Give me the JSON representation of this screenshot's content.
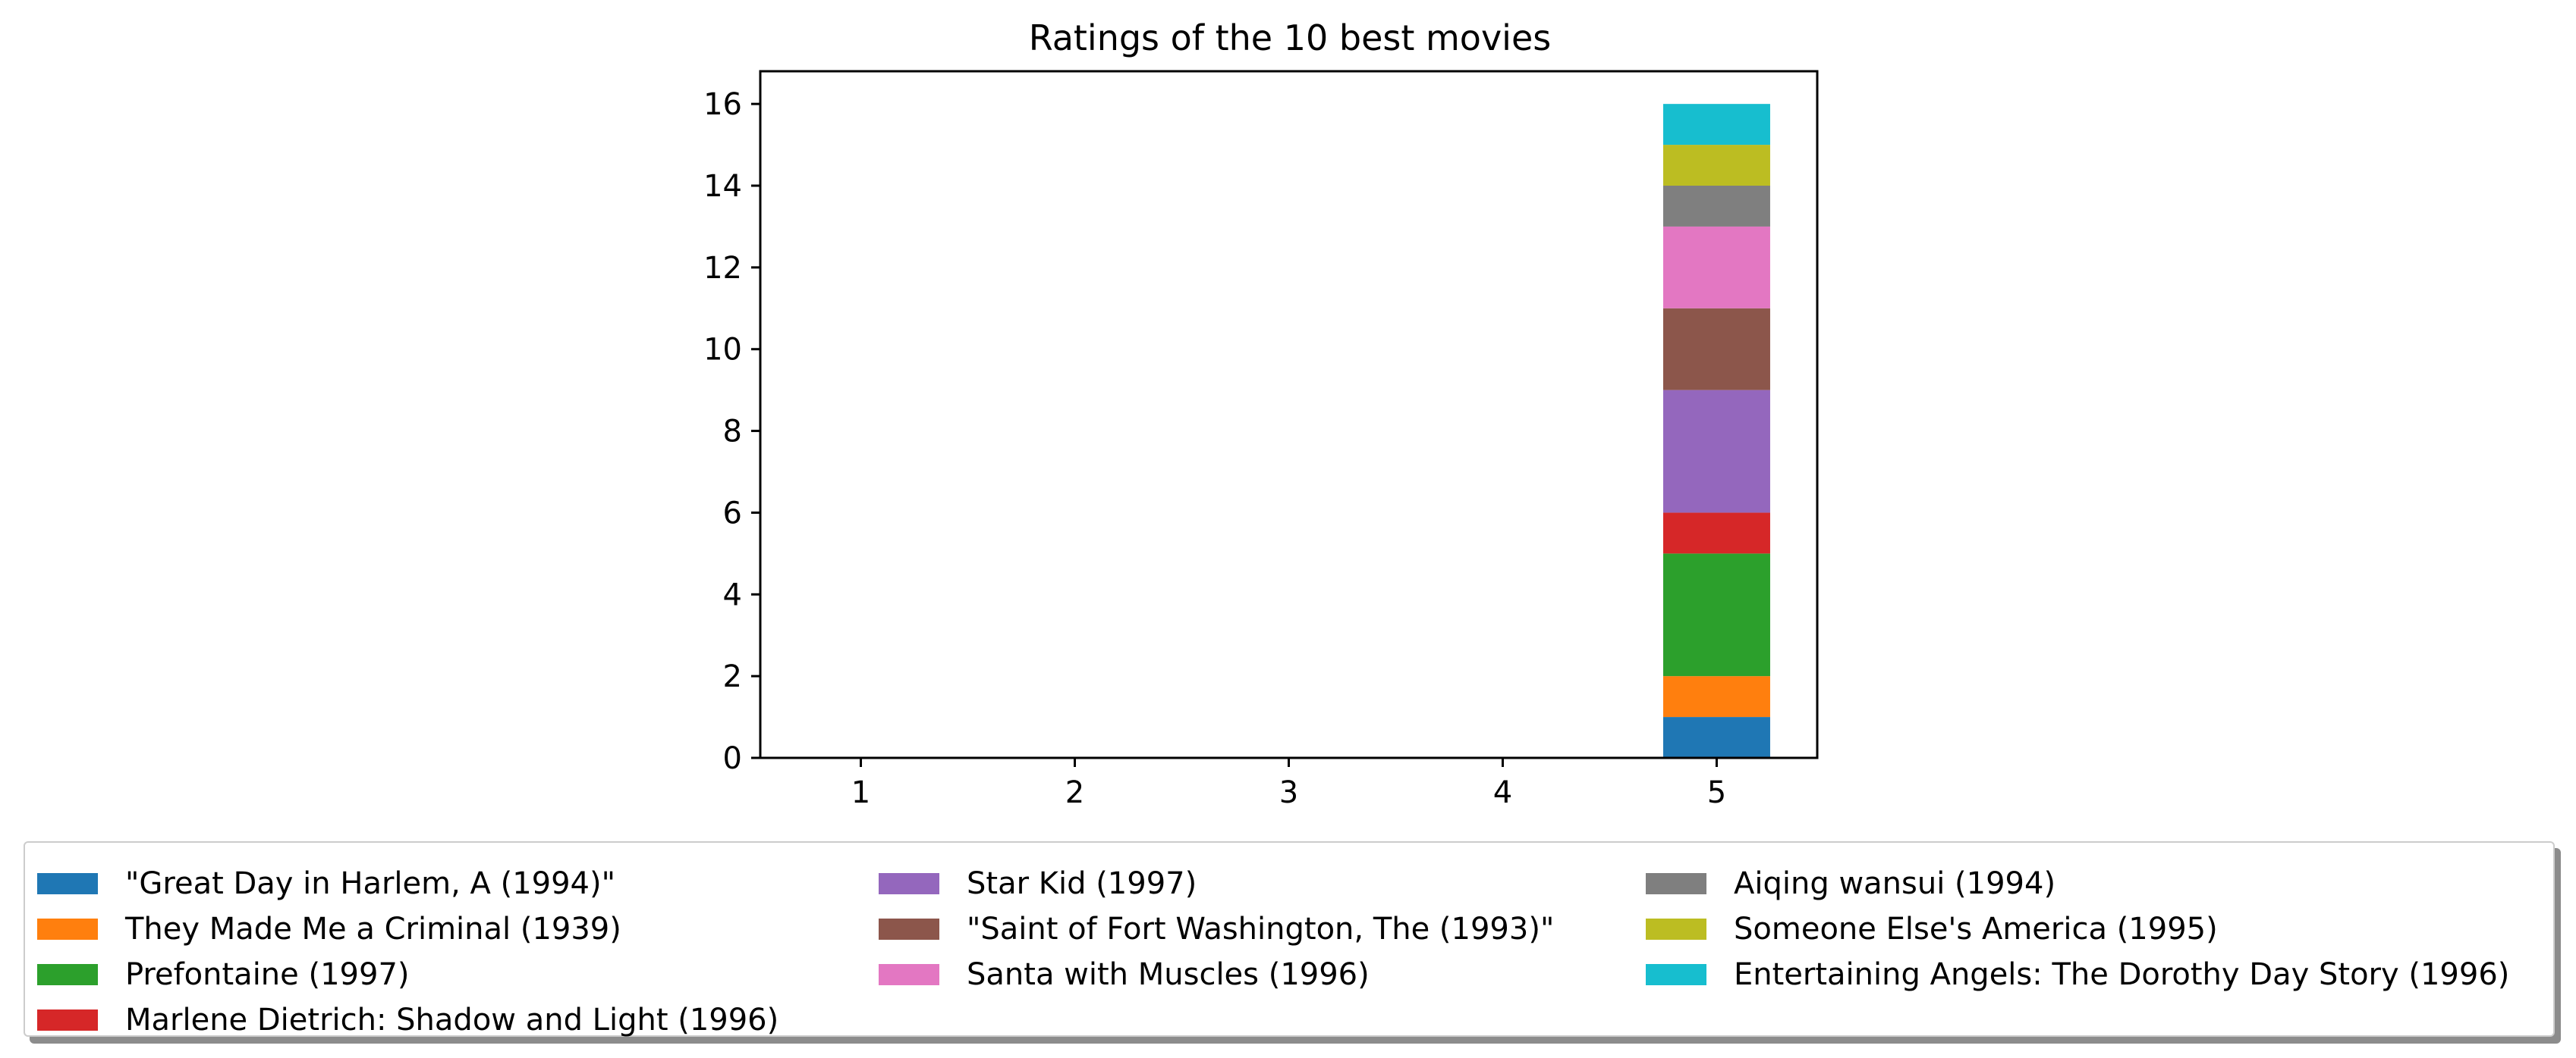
{
  "chart_data": {
    "type": "bar",
    "stacked": true,
    "title": "Ratings of the 10 best movies",
    "xlabel": "",
    "ylabel": "",
    "categories": [
      1,
      2,
      3,
      4,
      5
    ],
    "x_ticks": [
      "1",
      "2",
      "3",
      "4",
      "5"
    ],
    "y_ticks": [
      "0",
      "2",
      "4",
      "6",
      "8",
      "10",
      "12",
      "14",
      "16"
    ],
    "ylim": [
      0,
      16.8
    ],
    "xlim": [
      0.53,
      5.47
    ],
    "grid": false,
    "legend_placement": "bottom",
    "series": [
      {
        "name": "\"Great Day in Harlem, A (1994)\"",
        "color": "#1f77b4",
        "values": [
          0,
          0,
          0,
          0,
          1
        ]
      },
      {
        "name": "They Made Me a Criminal (1939)",
        "color": "#ff7f0e",
        "values": [
          0,
          0,
          0,
          0,
          1
        ]
      },
      {
        "name": "Prefontaine (1997)",
        "color": "#2ca02c",
        "values": [
          0,
          0,
          0,
          0,
          3
        ]
      },
      {
        "name": "Marlene Dietrich: Shadow and Light (1996)",
        "color": "#d62728",
        "values": [
          0,
          0,
          0,
          0,
          1
        ]
      },
      {
        "name": "Star Kid (1997)",
        "color": "#9467bd",
        "values": [
          0,
          0,
          0,
          0,
          3
        ]
      },
      {
        "name": "\"Saint of Fort Washington, The (1993)\"",
        "color": "#8c564b",
        "values": [
          0,
          0,
          0,
          0,
          2
        ]
      },
      {
        "name": "Santa with Muscles (1996)",
        "color": "#e377c2",
        "values": [
          0,
          0,
          0,
          0,
          2
        ]
      },
      {
        "name": "Aiqing wansui (1994)",
        "color": "#7f7f7f",
        "values": [
          0,
          0,
          0,
          0,
          1
        ]
      },
      {
        "name": "Someone Else's America (1995)",
        "color": "#bcbd22",
        "values": [
          0,
          0,
          0,
          0,
          1
        ]
      },
      {
        "name": "Entertaining Angels: The Dorothy Day Story (1996)",
        "color": "#17becf",
        "values": [
          0,
          0,
          0,
          0,
          1
        ]
      }
    ]
  }
}
